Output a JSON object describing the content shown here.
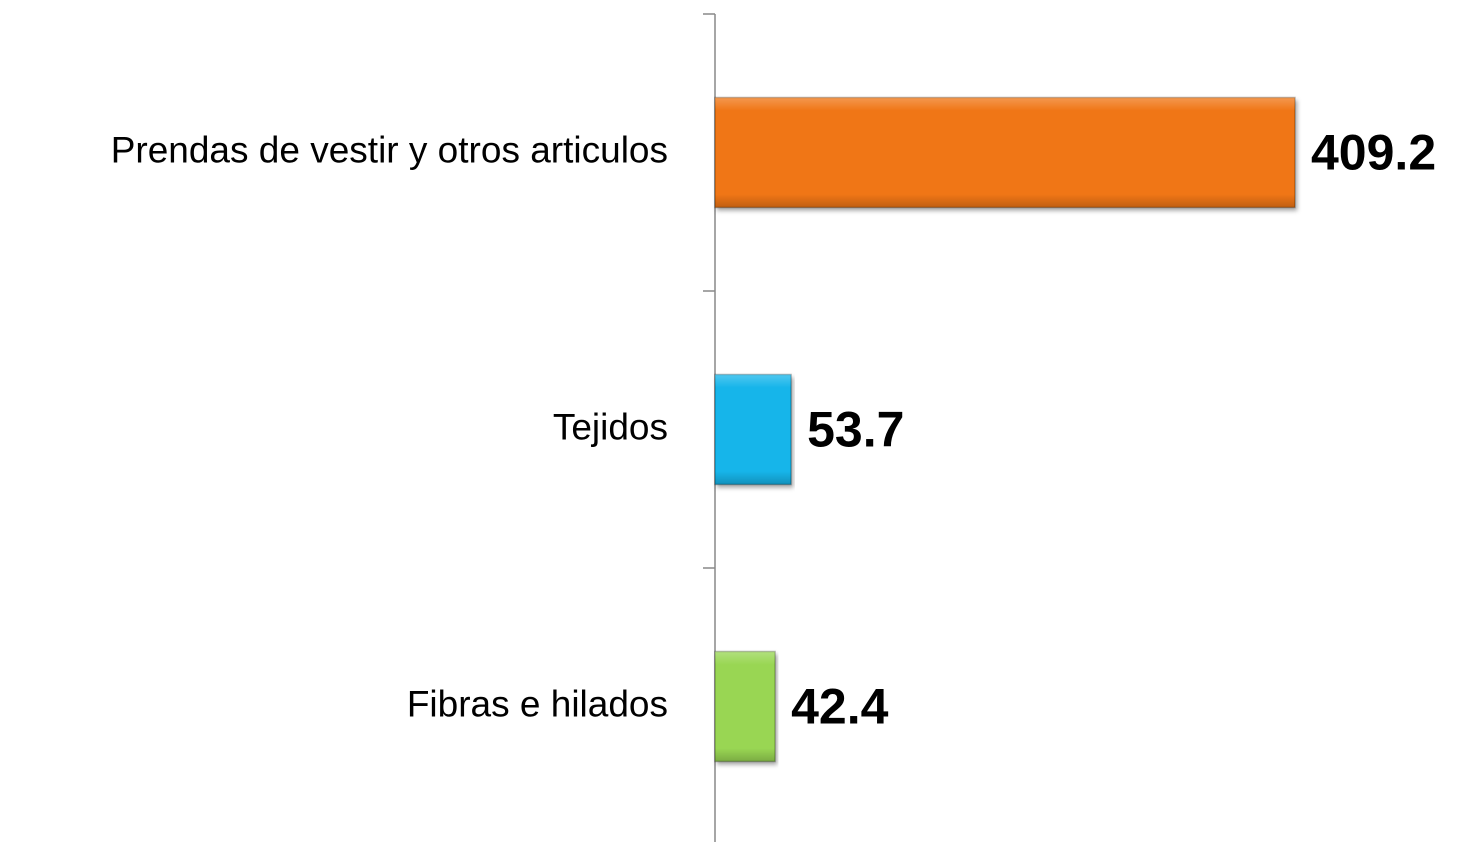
{
  "chart_data": {
    "type": "hbar",
    "categories": [
      "Prendas de vestir y otros articulos",
      "Tejidos",
      "Fibras e hilados"
    ],
    "values": [
      409.2,
      53.7,
      42.4
    ],
    "colors": [
      "#f07613",
      "#13b5ea",
      "#99d652"
    ]
  }
}
